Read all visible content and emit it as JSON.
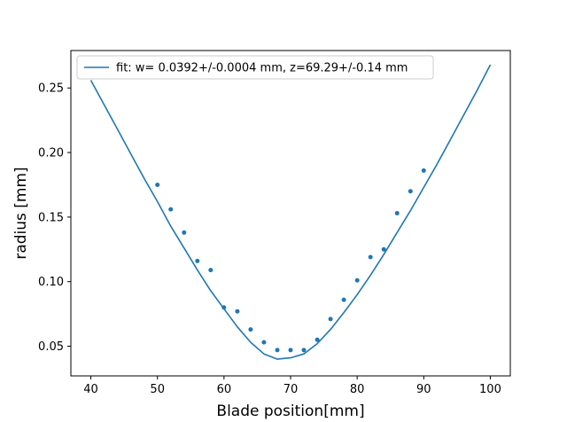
{
  "chart_data": {
    "type": "scatter",
    "title": "",
    "xlabel": "Blade position[mm]",
    "ylabel": "radius [mm]",
    "xlim": [
      37,
      103
    ],
    "ylim": [
      0.027,
      0.279
    ],
    "xticks": [
      40,
      50,
      60,
      70,
      80,
      90,
      100
    ],
    "yticks": [
      0.05,
      0.1,
      0.15,
      0.2,
      0.25
    ],
    "ytick_labels": [
      "0.05",
      "0.10",
      "0.15",
      "0.20",
      "0.25"
    ],
    "grid": false,
    "legend_position": "top-left",
    "colors": {
      "series": "#1f77b4",
      "axes": "#000000",
      "legend_border": "#cccccc"
    },
    "series": [
      {
        "kind": "points",
        "x": [
          50,
          52,
          54,
          56,
          58,
          60,
          62,
          64,
          66,
          68,
          70,
          72,
          74,
          76,
          78,
          80,
          82,
          84,
          86,
          88,
          90
        ],
        "y": [
          0.175,
          0.156,
          0.138,
          0.116,
          0.109,
          0.08,
          0.077,
          0.063,
          0.053,
          0.047,
          0.047,
          0.047,
          0.055,
          0.071,
          0.086,
          0.101,
          0.119,
          0.125,
          0.153,
          0.17,
          0.186
        ]
      },
      {
        "kind": "line",
        "name": "fit: w= 0.0392+/-0.0004 mm, z=69.29+/-0.14 mm",
        "x": [
          40,
          42,
          44,
          46,
          48,
          50,
          52,
          54,
          56,
          58,
          60,
          62,
          64,
          66,
          68,
          70,
          72,
          74,
          76,
          78,
          80,
          82,
          84,
          86,
          88,
          90,
          92,
          94,
          96,
          98,
          100
        ],
        "y": [
          0.256,
          0.237,
          0.218,
          0.199,
          0.18,
          0.162,
          0.143,
          0.126,
          0.109,
          0.093,
          0.079,
          0.065,
          0.053,
          0.044,
          0.04,
          0.041,
          0.044,
          0.052,
          0.063,
          0.076,
          0.09,
          0.105,
          0.121,
          0.138,
          0.155,
          0.173,
          0.191,
          0.21,
          0.229,
          0.248,
          0.268
        ]
      }
    ]
  }
}
